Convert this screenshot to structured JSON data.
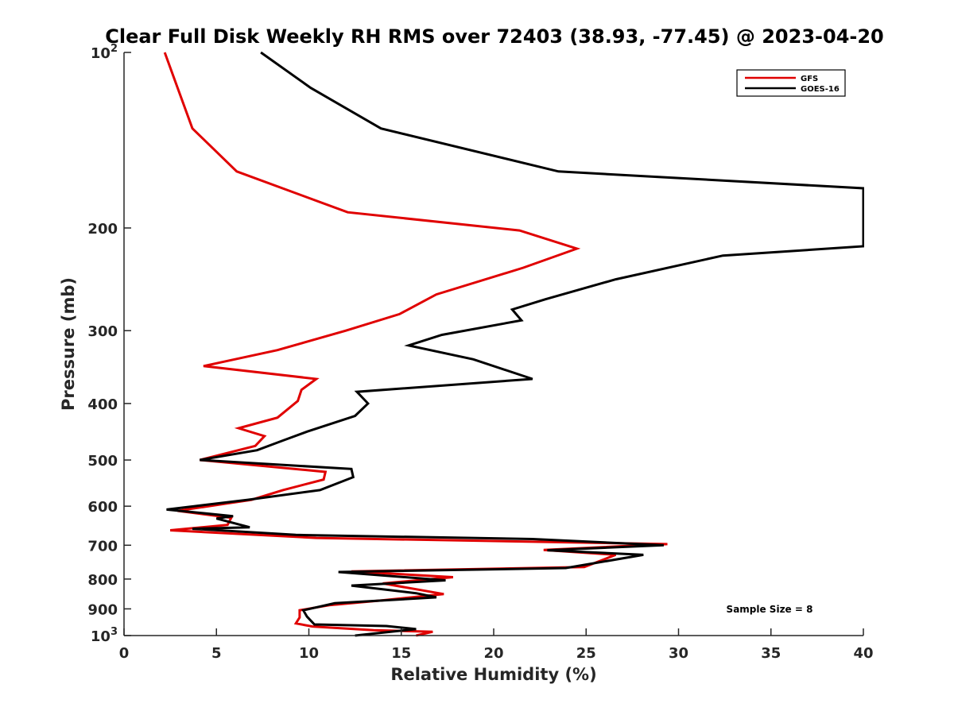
{
  "chart_data": {
    "type": "line",
    "title": "Clear Full Disk Weekly RH RMS over 72403 (38.93, -77.45) @ 2023-04-20",
    "xlabel": "Relative Humidity (%)",
    "ylabel": "Pressure (mb)",
    "xlim": [
      0,
      40
    ],
    "ylim": [
      100,
      1000
    ],
    "y_scale": "log",
    "y_reversed": true,
    "x_ticks": [
      "0",
      "5",
      "10",
      "15",
      "20",
      "25",
      "30",
      "35",
      "40"
    ],
    "y_ticks": [
      {
        "value": 100,
        "base": "10",
        "exp": "2"
      },
      {
        "value": 200,
        "label": "200"
      },
      {
        "value": 300,
        "label": "300"
      },
      {
        "value": 400,
        "label": "400"
      },
      {
        "value": 500,
        "label": "500"
      },
      {
        "value": 600,
        "label": "600"
      },
      {
        "value": 700,
        "label": "700"
      },
      {
        "value": 800,
        "label": "800"
      },
      {
        "value": 900,
        "label": "900"
      },
      {
        "value": 1000,
        "base": "10",
        "exp": "3"
      }
    ],
    "grid": false,
    "legend_position": "top-right",
    "annotation": "Sample Size = 8",
    "series": [
      {
        "name": "GFS",
        "color": "#e00000",
        "points": [
          [
            2.2,
            100
          ],
          [
            2.9,
            115
          ],
          [
            3.7,
            135
          ],
          [
            6.1,
            160
          ],
          [
            12.1,
            188
          ],
          [
            21.4,
            202
          ],
          [
            24.5,
            217
          ],
          [
            21.6,
            234
          ],
          [
            16.9,
            260
          ],
          [
            14.9,
            281
          ],
          [
            12.0,
            300
          ],
          [
            8.3,
            324
          ],
          [
            4.3,
            345
          ],
          [
            10.4,
            363
          ],
          [
            9.6,
            379
          ],
          [
            9.4,
            396
          ],
          [
            8.3,
            423
          ],
          [
            6.2,
            441
          ],
          [
            7.6,
            455
          ],
          [
            7.1,
            473
          ],
          [
            4.1,
            500
          ],
          [
            10.9,
            524
          ],
          [
            10.8,
            540
          ],
          [
            8.6,
            563
          ],
          [
            6.9,
            585
          ],
          [
            2.9,
            611
          ],
          [
            5.8,
            628
          ],
          [
            5.6,
            646
          ],
          [
            2.5,
            660
          ],
          [
            10.4,
            680
          ],
          [
            29.4,
            697
          ],
          [
            22.7,
            713
          ],
          [
            26.6,
            727
          ],
          [
            24.9,
            763
          ],
          [
            12.3,
            776
          ],
          [
            17.8,
            794
          ],
          [
            14.0,
            814
          ],
          [
            17.3,
            849
          ],
          [
            14.0,
            870
          ],
          [
            11.1,
            887
          ],
          [
            9.5,
            905
          ],
          [
            9.5,
            931
          ],
          [
            9.3,
            953
          ],
          [
            10.2,
            965
          ],
          [
            13.5,
            979
          ],
          [
            16.7,
            985
          ],
          [
            15.8,
            1000
          ]
        ]
      },
      {
        "name": "GOES-16",
        "color": "#000000",
        "points": [
          [
            7.4,
            100
          ],
          [
            10.1,
            115
          ],
          [
            13.9,
            135
          ],
          [
            23.5,
            160
          ],
          [
            40.0,
            171
          ],
          [
            40.0,
            215
          ],
          [
            32.4,
            223
          ],
          [
            26.6,
            245
          ],
          [
            22.8,
            265
          ],
          [
            21.0,
            276
          ],
          [
            21.5,
            288
          ],
          [
            17.2,
            305
          ],
          [
            15.4,
            318
          ],
          [
            18.9,
            336
          ],
          [
            22.1,
            363
          ],
          [
            12.6,
            382
          ],
          [
            13.2,
            400
          ],
          [
            12.5,
            420
          ],
          [
            9.9,
            447
          ],
          [
            8.6,
            463
          ],
          [
            7.2,
            481
          ],
          [
            4.1,
            500
          ],
          [
            12.3,
            518
          ],
          [
            12.4,
            535
          ],
          [
            10.6,
            563
          ],
          [
            6.7,
            585
          ],
          [
            2.3,
            608
          ],
          [
            5.9,
            624
          ],
          [
            5.0,
            630
          ],
          [
            6.8,
            652
          ],
          [
            3.7,
            656
          ],
          [
            9.3,
            672
          ],
          [
            22.1,
            683
          ],
          [
            29.2,
            700
          ],
          [
            22.9,
            714
          ],
          [
            28.1,
            727
          ],
          [
            23.9,
            766
          ],
          [
            11.6,
            778
          ],
          [
            17.4,
            804
          ],
          [
            12.3,
            821
          ],
          [
            15.8,
            846
          ],
          [
            16.9,
            860
          ],
          [
            11.4,
            880
          ],
          [
            9.7,
            905
          ],
          [
            9.9,
            928
          ],
          [
            10.3,
            957
          ],
          [
            14.2,
            963
          ],
          [
            15.8,
            975
          ],
          [
            12.5,
            1000
          ]
        ]
      }
    ]
  }
}
